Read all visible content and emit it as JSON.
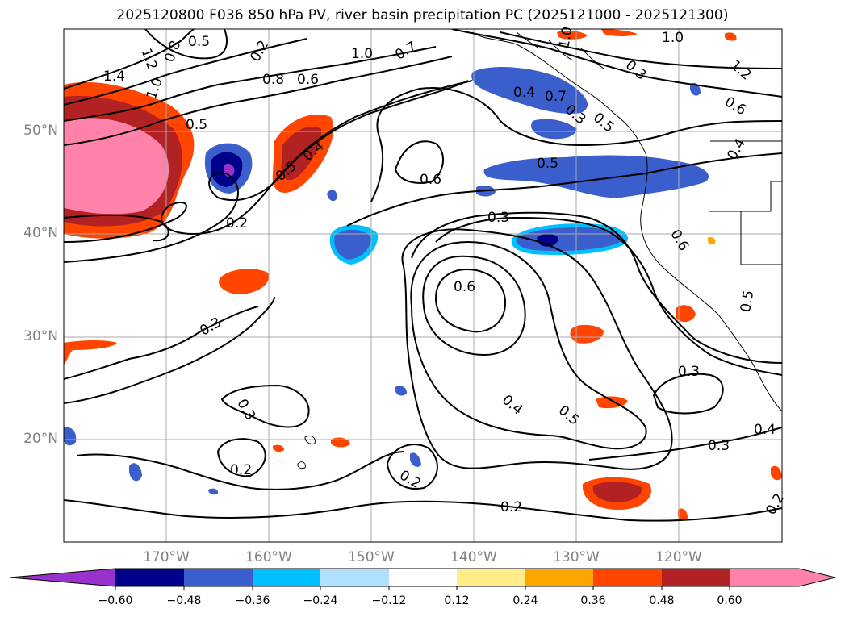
{
  "title": "2025120800 F036 850 hPa PV, river basin precipitation PC (2025121000 - 2025121300)",
  "map": {
    "lat_labels": [
      "50°N",
      "40°N",
      "30°N",
      "20°N"
    ],
    "lon_labels": [
      "170°W",
      "160°W",
      "150°W",
      "140°W",
      "130°W",
      "120°W"
    ],
    "grid_color": "#a9a9a9",
    "contour_labels": [
      "1.4",
      "1.2",
      "1.0",
      "0.8",
      "0.5",
      "0.7",
      "0.2",
      "1.0",
      "0.8",
      "0.6",
      "0.7",
      "1.0",
      "1.0",
      "0.3",
      "1.2",
      "0.6",
      "0.4",
      "0.7",
      "0.3",
      "0.5",
      "0.5",
      "0.4",
      "0.6",
      "0.5",
      "0.6",
      "0.2",
      "0.3",
      "0.6",
      "0.3",
      "0.3",
      "0.4",
      "0.5",
      "0.3",
      "0.3",
      "0.4",
      "0.2",
      "0.2",
      "0.2",
      "0.2",
      "0.5",
      "0.4"
    ]
  },
  "colorbar": {
    "ticks": [
      "−0.60",
      "−0.48",
      "−0.36",
      "−0.24",
      "−0.12",
      "0.12",
      "0.24",
      "0.36",
      "0.48",
      "0.60"
    ],
    "colors": [
      "#9932cc",
      "#00008b",
      "#3a5fcd",
      "#00bfff",
      "#b0e2ff",
      "#ffffff",
      "#ffec8b",
      "#ffa500",
      "#ff4500",
      "#b22222",
      "#ff82ab",
      "#ff82ab"
    ]
  }
}
